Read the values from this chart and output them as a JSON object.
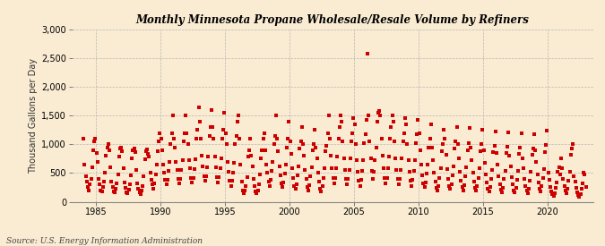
{
  "title": "Monthly Minnesota Propane Wholesale/Resale Volume by Refiners",
  "ylabel": "Thousand Gallons per Day",
  "source": "Source: U.S. Energy Information Administration",
  "background_color": "#faecd2",
  "marker_color": "#cc0000",
  "xlim": [
    1983.2,
    2023.5
  ],
  "ylim": [
    0,
    3000
  ],
  "yticks": [
    0,
    500,
    1000,
    1500,
    2000,
    2500,
    3000
  ],
  "xticks": [
    1985,
    1990,
    1995,
    2000,
    2005,
    2010,
    2015,
    2020
  ],
  "n_years_start": 1984,
  "monthly_data": [
    1100,
    650,
    450,
    350,
    250,
    200,
    300,
    400,
    600,
    900,
    1050,
    1100,
    850,
    700,
    400,
    300,
    200,
    180,
    250,
    350,
    500,
    800,
    950,
    1000,
    900,
    600,
    350,
    250,
    180,
    160,
    220,
    320,
    480,
    780,
    920,
    950,
    880,
    580,
    340,
    240,
    170,
    150,
    210,
    300,
    460,
    760,
    900,
    930,
    860,
    560,
    320,
    220,
    160,
    140,
    200,
    280,
    440,
    740,
    880,
    910,
    840,
    780,
    500,
    380,
    300,
    220,
    320,
    480,
    640,
    880,
    1050,
    1200,
    1100,
    900,
    650,
    500,
    380,
    300,
    380,
    530,
    700,
    1000,
    1200,
    1500,
    1100,
    950,
    700,
    550,
    400,
    320,
    400,
    550,
    720,
    1050,
    1200,
    1500,
    1200,
    1000,
    720,
    580,
    420,
    340,
    420,
    570,
    740,
    1100,
    1250,
    1650,
    1400,
    1100,
    800,
    620,
    450,
    360,
    450,
    600,
    780,
    1150,
    1300,
    1600,
    1300,
    1100,
    780,
    600,
    430,
    340,
    430,
    580,
    760,
    1100,
    1250,
    1550,
    1200,
    1000,
    700,
    520,
    360,
    280,
    360,
    510,
    680,
    1000,
    1150,
    1400,
    1500,
    1100,
    650,
    350,
    200,
    150,
    200,
    280,
    430,
    780,
    900,
    1100,
    800,
    620,
    400,
    280,
    180,
    150,
    200,
    300,
    480,
    750,
    900,
    1100,
    1200,
    900,
    650,
    500,
    350,
    280,
    380,
    530,
    700,
    1000,
    1150,
    1500,
    1100,
    880,
    620,
    460,
    320,
    250,
    340,
    490,
    650,
    950,
    1100,
    1400,
    1050,
    830,
    580,
    420,
    280,
    220,
    310,
    460,
    620,
    920,
    1050,
    1300,
    1000,
    800,
    550,
    390,
    260,
    200,
    290,
    440,
    600,
    900,
    1000,
    1250,
    950,
    750,
    500,
    350,
    230,
    180,
    270,
    420,
    580,
    880,
    980,
    1200,
    1500,
    1100,
    800,
    580,
    420,
    320,
    420,
    580,
    780,
    1100,
    1300,
    1500,
    1400,
    1050,
    750,
    550,
    390,
    300,
    400,
    560,
    750,
    1050,
    1200,
    1450,
    1350,
    1000,
    720,
    520,
    360,
    280,
    380,
    540,
    720,
    1020,
    1170,
    1420,
    2580,
    1500,
    1050,
    750,
    530,
    400,
    520,
    720,
    950,
    1400,
    1550,
    1580,
    1500,
    1100,
    800,
    580,
    420,
    320,
    420,
    580,
    780,
    1100,
    1300,
    1500,
    1400,
    1050,
    750,
    550,
    390,
    300,
    400,
    560,
    750,
    1050,
    1200,
    1450,
    1350,
    1000,
    720,
    520,
    360,
    280,
    380,
    540,
    720,
    1020,
    1170,
    1420,
    1200,
    900,
    650,
    460,
    320,
    250,
    340,
    490,
    650,
    950,
    1100,
    1350,
    950,
    720,
    500,
    350,
    240,
    190,
    270,
    420,
    580,
    880,
    1000,
    1250,
    1100,
    820,
    570,
    400,
    280,
    220,
    310,
    460,
    620,
    920,
    1050,
    1300,
    1000,
    750,
    520,
    370,
    250,
    200,
    290,
    440,
    600,
    900,
    1020,
    1280,
    950,
    720,
    500,
    350,
    240,
    190,
    270,
    420,
    580,
    880,
    1000,
    1250,
    900,
    680,
    470,
    330,
    220,
    175,
    255,
    400,
    560,
    860,
    980,
    1230,
    850,
    650,
    450,
    310,
    210,
    165,
    245,
    390,
    545,
    845,
    960,
    1210,
    800,
    620,
    430,
    300,
    200,
    160,
    235,
    380,
    530,
    830,
    940,
    1190,
    750,
    580,
    400,
    280,
    188,
    150,
    225,
    365,
    515,
    815,
    925,
    1175,
    900,
    700,
    480,
    340,
    230,
    180,
    265,
    410,
    570,
    870,
    990,
    1240,
    500,
    380,
    260,
    185,
    125,
    100,
    150,
    240,
    340,
    520,
    600,
    480,
    750,
    580,
    400,
    280,
    188,
    150,
    225,
    365,
    515,
    815,
    925,
    1000,
    450,
    350,
    240,
    170,
    115,
    92,
    140,
    225,
    320,
    500,
    480,
    250
  ]
}
